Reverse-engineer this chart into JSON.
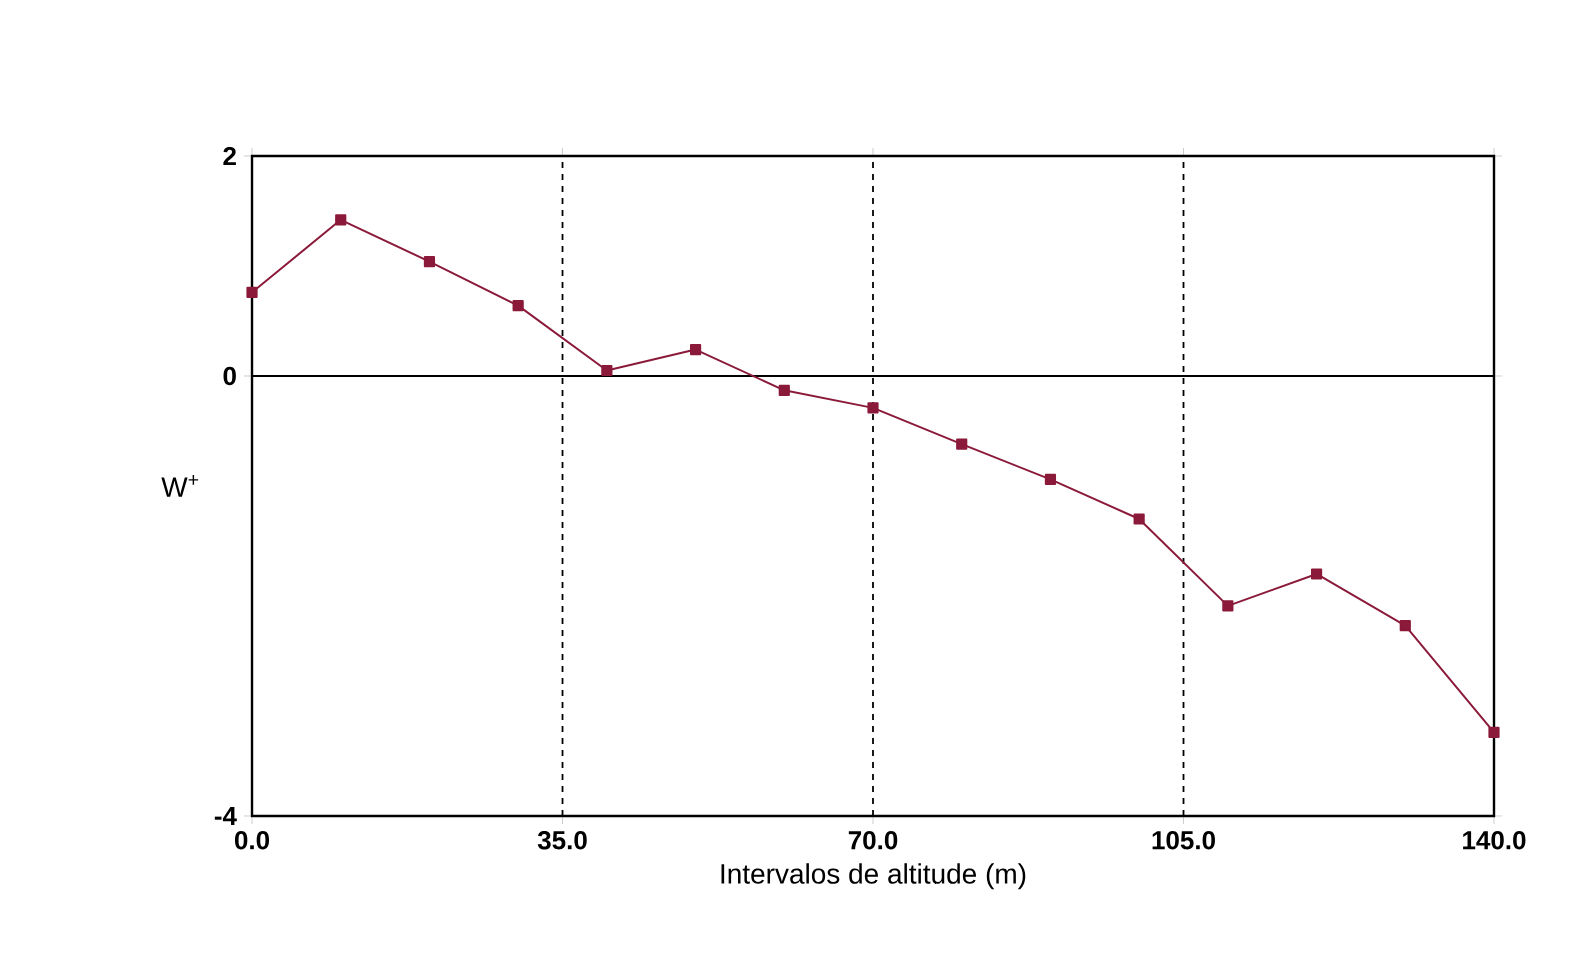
{
  "chart_data": {
    "type": "line",
    "xlabel": "Intervalos de altitude (m)",
    "ylabel": "W$^{+}$",
    "x": [
      0,
      10,
      20,
      30,
      40,
      50,
      60,
      70,
      80,
      90,
      100,
      110,
      120,
      130,
      140
    ],
    "series": [
      {
        "color": "#8b1a3a",
        "values": [
          0.76,
          1.42,
          1.04,
          0.64,
          0.05,
          0.24,
          -0.13,
          -0.29,
          -0.62,
          -0.94,
          -1.3,
          -2.09,
          -1.8,
          -2.27,
          -3.24
        ]
      }
    ],
    "xlim": [
      0,
      140
    ],
    "ylim": [
      -4,
      2
    ],
    "xticks": [
      {
        "value": 0,
        "label": "0.0"
      },
      {
        "value": 35,
        "label": "35.0"
      },
      {
        "value": 70,
        "label": "70.0"
      },
      {
        "value": 105,
        "label": "105.0"
      },
      {
        "value": 140,
        "label": "140.0"
      }
    ],
    "yticks": [
      -4,
      0,
      2
    ],
    "grid": true,
    "marker": "square",
    "line_style": "solid"
  }
}
